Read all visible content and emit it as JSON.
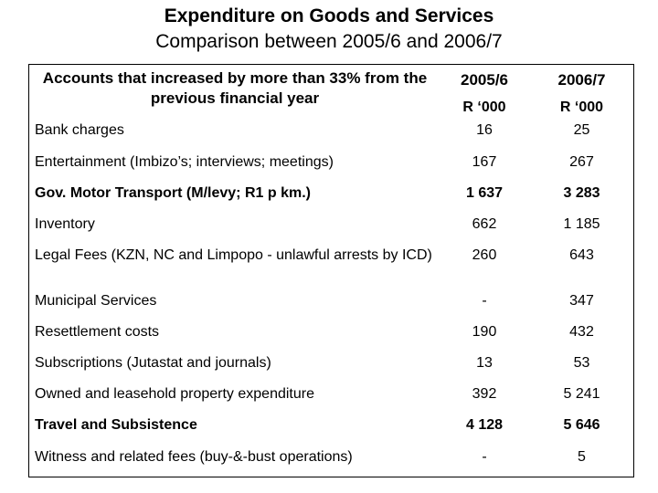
{
  "title": "Expenditure on Goods and Services",
  "subtitle": "Comparison between 2005/6 and 2006/7",
  "table": {
    "header_accounts": "Accounts that increased by more than 33% from the previous financial year",
    "header_year1": "2005/6",
    "header_year2": "2006/7",
    "unit1": "R ‘000",
    "unit2": "R ‘000",
    "rows": [
      {
        "label": "Bank charges",
        "v2005": "16",
        "v2006": "25"
      },
      {
        "label": "Entertainment (Imbizo’s; interviews; meetings)",
        "v2005": "167",
        "v2006": "267"
      },
      {
        "label": "Gov. Motor Transport (M/levy; R1 p km.)",
        "v2005": "1 637",
        "v2006": "3 283"
      },
      {
        "label": "Inventory",
        "v2005": "662",
        "v2006": "1 185"
      },
      {
        "label": "Legal Fees  (KZN, NC and Limpopo - unlawful arrests by ICD)",
        "v2005": "260",
        "v2006": "643"
      },
      {
        "label": "Municipal Services",
        "v2005": "-",
        "v2006": "347"
      },
      {
        "label": "Resettlement costs",
        "v2005": "190",
        "v2006": "432"
      },
      {
        "label": "Subscriptions   (Jutastat and journals)",
        "v2005": "13",
        "v2006": "53"
      },
      {
        "label": "Owned and leasehold property expenditure",
        "v2005": "392",
        "v2006": "5 241"
      },
      {
        "label": "Travel and Subsistence",
        "v2005": "4 128",
        "v2006": "5 646"
      },
      {
        "label": "Witness and related fees  (buy-&-bust operations)",
        "v2005": "-",
        "v2006": "5"
      }
    ]
  }
}
